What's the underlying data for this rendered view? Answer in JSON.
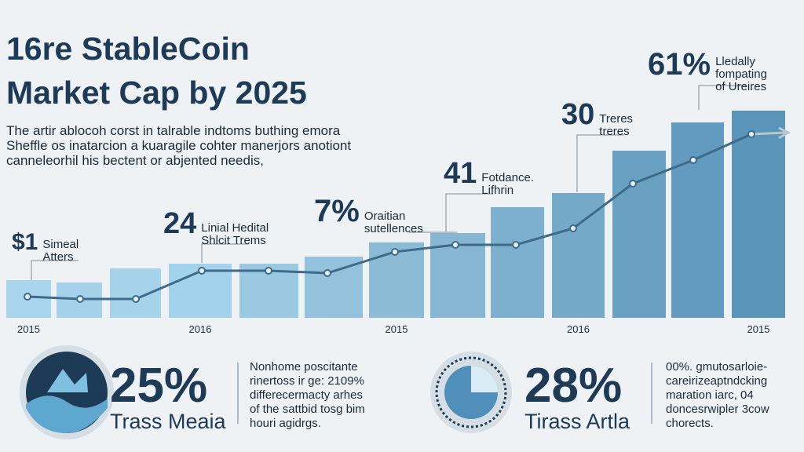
{
  "chart_data": {
    "type": "bar",
    "title": [
      "16re StableCoin",
      "Market Cap by 2025"
    ],
    "description": [
      "The artir ablocoh corst in talrable indtoms buthing emora",
      "Sheffle os inatarcion a kuaragile cohter manerjors anotiont",
      "canneleorhil his bectent or abjented needis,"
    ],
    "categories": [
      "2015",
      null,
      null,
      "2016",
      null,
      null,
      "2015",
      null,
      null,
      "2016",
      null,
      null,
      "2015"
    ],
    "values": [
      16,
      15,
      21,
      23,
      23,
      26,
      32,
      36,
      47,
      53,
      71,
      83,
      88
    ],
    "colors": [
      "#a9d6ee",
      "#a5d2ea",
      "#a6d3ea",
      "#a2d2ec",
      "#9bc9e2",
      "#94c2dc",
      "#8cbbd6",
      "#86b6d2",
      "#7db0ce",
      "#74a9c9",
      "#6aa1c3",
      "#629bbf",
      "#5a94b9"
    ],
    "series": [
      {
        "color": "#3f6b8a",
        "values": [
          9,
          8,
          8,
          20,
          20,
          19,
          28,
          31,
          31,
          38,
          57,
          67,
          78
        ]
      }
    ],
    "ylim": [
      0,
      100
    ],
    "annotations": [
      {
        "value": "$1",
        "lines": [
          "Simeal",
          "Atters"
        ]
      },
      {
        "value": "24",
        "lines": [
          "Linial Hedital",
          "Shlcit Trems"
        ]
      },
      {
        "value": "7%",
        "lines": [
          "Oraitian",
          "sutellences"
        ]
      },
      {
        "value": "41",
        "lines": [
          "Fotdance.",
          "Lifhrin"
        ]
      },
      {
        "value": "30",
        "lines": [
          "Treres",
          "treres"
        ]
      },
      {
        "value": "61%",
        "lines": [
          "Lledally",
          "fompating",
          "of Ureires"
        ]
      }
    ],
    "stats": [
      {
        "value": "25%",
        "label": "Trass Meaia",
        "text": [
          "Nonhome poscitante",
          "rinertoss ir ge: 2109%",
          "differecermacty arhes",
          "of the sattbid tosg bim",
          "houri agidrgs."
        ]
      },
      {
        "value": "28%",
        "label": "Tirass Artla",
        "text": [
          "00%. gmutosarloie-",
          "careirizeaptndcking",
          "maration iarc, 04",
          "doncesrwipler 3cow",
          "chorects."
        ]
      }
    ]
  }
}
